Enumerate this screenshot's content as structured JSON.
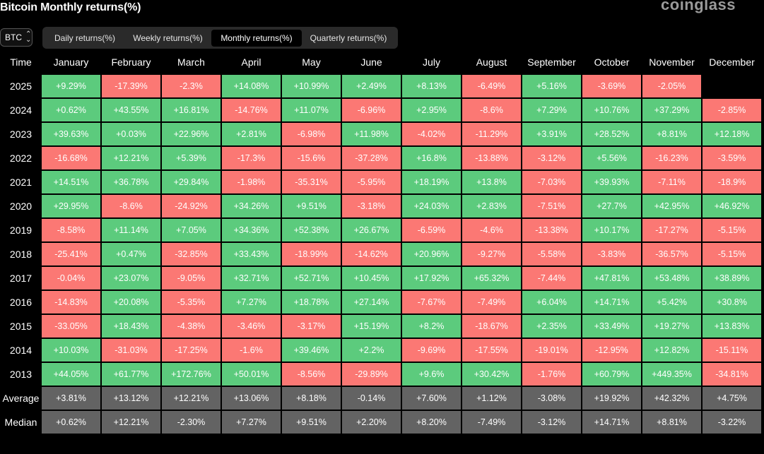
{
  "header": {
    "title": "Bitcoin Monthly returns(%)",
    "brand": "coinglass"
  },
  "coin_select": {
    "value": "BTC"
  },
  "tabs": [
    {
      "label": "Daily returns(%)",
      "active": false
    },
    {
      "label": "Weekly returns(%)",
      "active": false
    },
    {
      "label": "Monthly returns(%)",
      "active": true
    },
    {
      "label": "Quarterly returns(%)",
      "active": false
    }
  ],
  "colors": {
    "positive": "#5ccb7d",
    "negative": "#fb7874",
    "aggregate": "#636363"
  },
  "table": {
    "columns": [
      "Time",
      "January",
      "February",
      "March",
      "April",
      "May",
      "June",
      "July",
      "August",
      "September",
      "October",
      "November",
      "December"
    ],
    "rows": [
      {
        "label": "2025",
        "values": [
          "+9.29%",
          "-17.39%",
          "-2.3%",
          "+14.08%",
          "+10.99%",
          "+2.49%",
          "+8.13%",
          "-6.49%",
          "+5.16%",
          "-3.69%",
          "-2.05%",
          ""
        ]
      },
      {
        "label": "2024",
        "values": [
          "+0.62%",
          "+43.55%",
          "+16.81%",
          "-14.76%",
          "+11.07%",
          "-6.96%",
          "+2.95%",
          "-8.6%",
          "+7.29%",
          "+10.76%",
          "+37.29%",
          "-2.85%"
        ]
      },
      {
        "label": "2023",
        "values": [
          "+39.63%",
          "+0.03%",
          "+22.96%",
          "+2.81%",
          "-6.98%",
          "+11.98%",
          "-4.02%",
          "-11.29%",
          "+3.91%",
          "+28.52%",
          "+8.81%",
          "+12.18%"
        ]
      },
      {
        "label": "2022",
        "values": [
          "-16.68%",
          "+12.21%",
          "+5.39%",
          "-17.3%",
          "-15.6%",
          "-37.28%",
          "+16.8%",
          "-13.88%",
          "-3.12%",
          "+5.56%",
          "-16.23%",
          "-3.59%"
        ]
      },
      {
        "label": "2021",
        "values": [
          "+14.51%",
          "+36.78%",
          "+29.84%",
          "-1.98%",
          "-35.31%",
          "-5.95%",
          "+18.19%",
          "+13.8%",
          "-7.03%",
          "+39.93%",
          "-7.11%",
          "-18.9%"
        ]
      },
      {
        "label": "2020",
        "values": [
          "+29.95%",
          "-8.6%",
          "-24.92%",
          "+34.26%",
          "+9.51%",
          "-3.18%",
          "+24.03%",
          "+2.83%",
          "-7.51%",
          "+27.7%",
          "+42.95%",
          "+46.92%"
        ]
      },
      {
        "label": "2019",
        "values": [
          "-8.58%",
          "+11.14%",
          "+7.05%",
          "+34.36%",
          "+52.38%",
          "+26.67%",
          "-6.59%",
          "-4.6%",
          "-13.38%",
          "+10.17%",
          "-17.27%",
          "-5.15%"
        ]
      },
      {
        "label": "2018",
        "values": [
          "-25.41%",
          "+0.47%",
          "-32.85%",
          "+33.43%",
          "-18.99%",
          "-14.62%",
          "+20.96%",
          "-9.27%",
          "-5.58%",
          "-3.83%",
          "-36.57%",
          "-5.15%"
        ]
      },
      {
        "label": "2017",
        "values": [
          "-0.04%",
          "+23.07%",
          "-9.05%",
          "+32.71%",
          "+52.71%",
          "+10.45%",
          "+17.92%",
          "+65.32%",
          "-7.44%",
          "+47.81%",
          "+53.48%",
          "+38.89%"
        ]
      },
      {
        "label": "2016",
        "values": [
          "-14.83%",
          "+20.08%",
          "-5.35%",
          "+7.27%",
          "+18.78%",
          "+27.14%",
          "-7.67%",
          "-7.49%",
          "+6.04%",
          "+14.71%",
          "+5.42%",
          "+30.8%"
        ]
      },
      {
        "label": "2015",
        "values": [
          "-33.05%",
          "+18.43%",
          "-4.38%",
          "-3.46%",
          "-3.17%",
          "+15.19%",
          "+8.2%",
          "-18.67%",
          "+2.35%",
          "+33.49%",
          "+19.27%",
          "+13.83%"
        ]
      },
      {
        "label": "2014",
        "values": [
          "+10.03%",
          "-31.03%",
          "-17.25%",
          "-1.6%",
          "+39.46%",
          "+2.2%",
          "-9.69%",
          "-17.55%",
          "-19.01%",
          "-12.95%",
          "+12.82%",
          "-15.11%"
        ]
      },
      {
        "label": "2013",
        "values": [
          "+44.05%",
          "+61.77%",
          "+172.76%",
          "+50.01%",
          "-8.56%",
          "-29.89%",
          "+9.6%",
          "+30.42%",
          "-1.76%",
          "+60.79%",
          "+449.35%",
          "-34.81%"
        ]
      }
    ],
    "summary_rows": [
      {
        "label": "Average",
        "values": [
          "+3.81%",
          "+13.12%",
          "+12.21%",
          "+13.06%",
          "+8.18%",
          "-0.14%",
          "+7.60%",
          "+1.12%",
          "-3.08%",
          "+19.92%",
          "+42.32%",
          "+4.75%"
        ]
      },
      {
        "label": "Median",
        "values": [
          "+0.62%",
          "+12.21%",
          "-2.30%",
          "+7.27%",
          "+9.51%",
          "+2.20%",
          "+8.20%",
          "-7.49%",
          "-3.12%",
          "+14.71%",
          "+8.81%",
          "-3.22%"
        ]
      }
    ]
  }
}
